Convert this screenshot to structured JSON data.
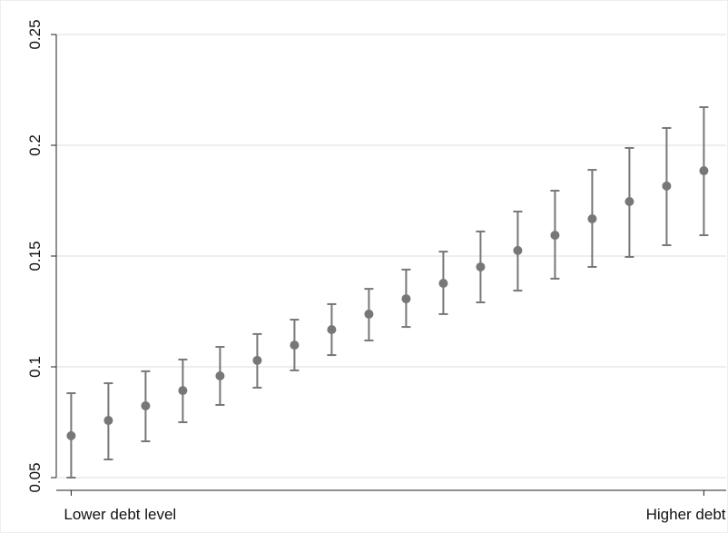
{
  "chart_data": {
    "type": "errorbar",
    "x": [
      1,
      2,
      3,
      4,
      5,
      6,
      7,
      8,
      9,
      10,
      11,
      12,
      13,
      14,
      15,
      16,
      17,
      18
    ],
    "values": [
      0.0689,
      0.0758,
      0.0824,
      0.0893,
      0.0959,
      0.1029,
      0.1098,
      0.1168,
      0.1238,
      0.1307,
      0.1377,
      0.1451,
      0.1525,
      0.1594,
      0.1668,
      0.1746,
      0.1816,
      0.1885
    ],
    "lower": [
      0.05,
      0.0582,
      0.0664,
      0.075,
      0.0828,
      0.0906,
      0.0984,
      0.1053,
      0.1119,
      0.118,
      0.1238,
      0.1291,
      0.1344,
      0.1398,
      0.1451,
      0.1496,
      0.1549,
      0.1594
    ],
    "upper": [
      0.0881,
      0.0926,
      0.098,
      0.1033,
      0.109,
      0.1148,
      0.1213,
      0.1283,
      0.1352,
      0.1439,
      0.152,
      0.1611,
      0.1701,
      0.1795,
      0.1889,
      0.1988,
      0.2078,
      0.2172
    ],
    "color": "#777777",
    "xlim": [
      0.6,
      18.6
    ],
    "xticks": [
      {
        "value": 1,
        "label": "Lower debt level"
      },
      {
        "value": 18,
        "label": "Higher debt level"
      }
    ],
    "ylim": [
      0.05,
      0.25
    ],
    "yticks": [
      0.05,
      0.1,
      0.15,
      0.2,
      0.25
    ],
    "grid": true
  }
}
